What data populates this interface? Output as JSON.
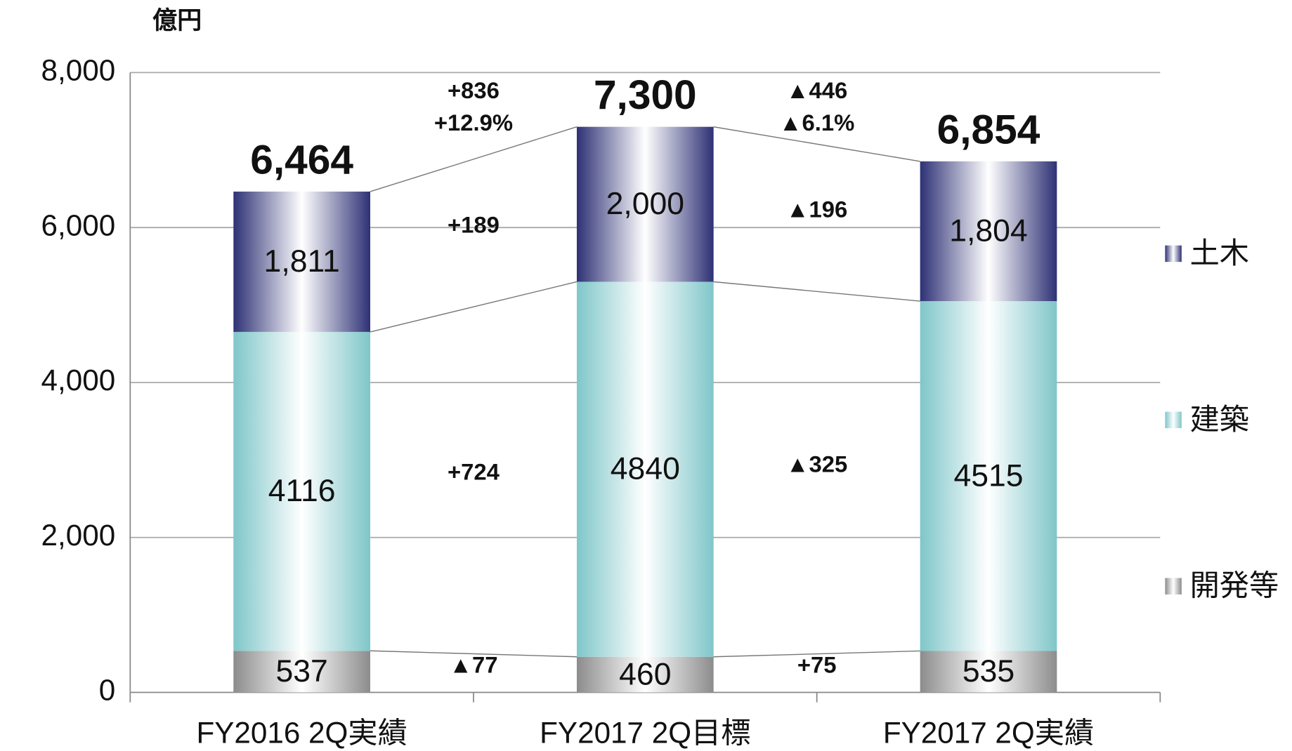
{
  "chart_data": {
    "type": "stacked_bar",
    "unit_label": "億円",
    "categories": [
      "FY2016 2Q実績",
      "FY2017 2Q目標",
      "FY2017 2Q実績"
    ],
    "series": [
      {
        "name": "開発等",
        "color": "#8c8c8c",
        "values": [
          537,
          460,
          535
        ]
      },
      {
        "name": "建築",
        "color": "#7fc6c9",
        "values": [
          4116,
          4840,
          4515
        ]
      },
      {
        "name": "土木",
        "color": "#2e3175",
        "values": [
          1811,
          2000,
          1804
        ],
        "value_labels": [
          "1,811",
          "2,000",
          "1,804"
        ]
      }
    ],
    "totals": {
      "values": [
        6464,
        7300,
        6854
      ],
      "value_labels": [
        "6,464",
        "7,300",
        "6,854"
      ]
    },
    "changes": [
      {
        "total": [
          "+836",
          "+12.9%"
        ],
        "series": [
          "▲77",
          "+724",
          "+189"
        ]
      },
      {
        "total": [
          "▲446",
          "▲6.1%"
        ],
        "series": [
          "+75",
          "▲325",
          "▲196"
        ]
      }
    ],
    "ylim": [
      0,
      8000
    ],
    "yticks": [
      0,
      {
        "value": 2000,
        "label": "2,000"
      },
      {
        "value": 4000,
        "label": "4,000"
      },
      {
        "value": 6000,
        "label": "6,000"
      },
      {
        "value": 8000,
        "label": "8,000"
      }
    ],
    "grid": true,
    "legend": "right"
  }
}
